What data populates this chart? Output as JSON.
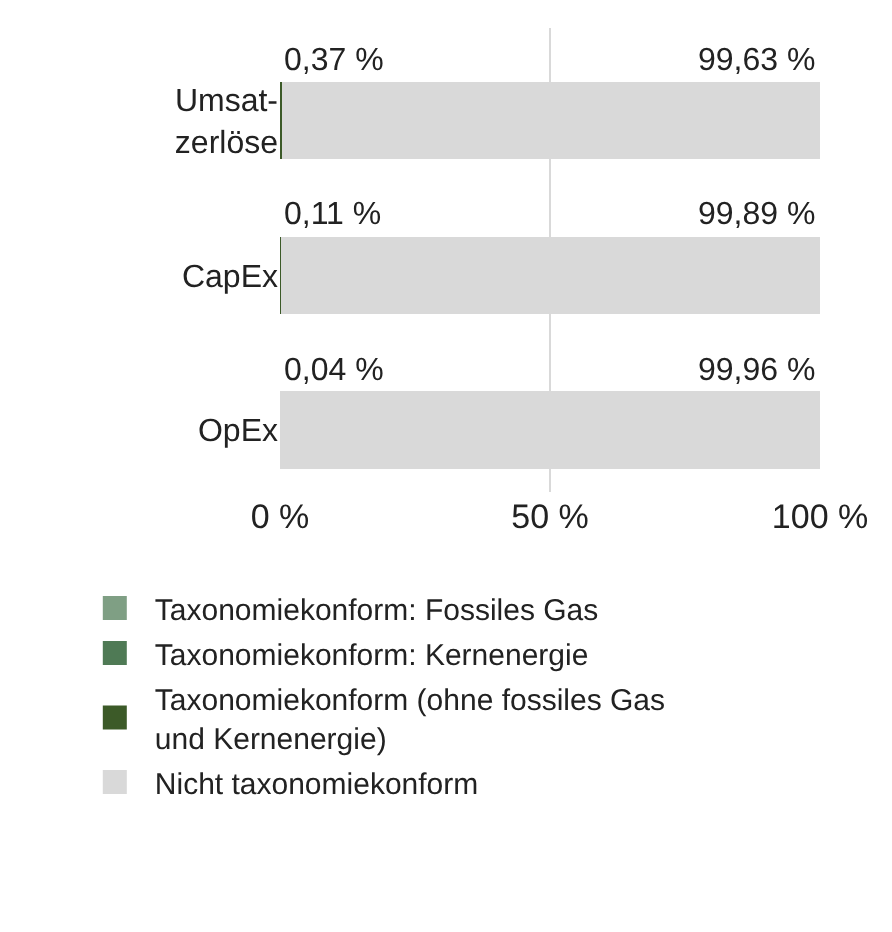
{
  "chart_data": {
    "type": "bar",
    "orientation": "horizontal",
    "stacked": true,
    "categories": [
      "Umsat-\nzerlöse",
      "CapEx",
      "OpEx"
    ],
    "series": [
      {
        "name": "Taxonomiekonform: Fossiles Gas",
        "color": "#7f9f84",
        "values": [
          0,
          0,
          0
        ]
      },
      {
        "name": "Taxonomiekonform: Kernenergie",
        "color": "#4f7a55",
        "values": [
          0,
          0,
          0
        ]
      },
      {
        "name": "Taxonomiekonform (ohne fossiles Gas\nund Kernenergie)",
        "color": "#3c5a28",
        "values": [
          0.37,
          0.11,
          0.04
        ],
        "value_labels": [
          "0,37 %",
          "0,11 %",
          "0,04 %"
        ]
      },
      {
        "name": "Nicht taxonomiekonform",
        "color": "#d9d9d9",
        "values": [
          99.63,
          99.89,
          99.96
        ],
        "value_labels": [
          "99,63 %",
          "99,89 %",
          "99,96 %"
        ]
      }
    ],
    "xlim": [
      0,
      100
    ],
    "xticks": [
      {
        "value": 0,
        "label": "0 %"
      },
      {
        "value": 50,
        "label": "50 %"
      },
      {
        "value": 100,
        "label": "100 %"
      }
    ],
    "grid": "x",
    "legend": "bottom"
  }
}
